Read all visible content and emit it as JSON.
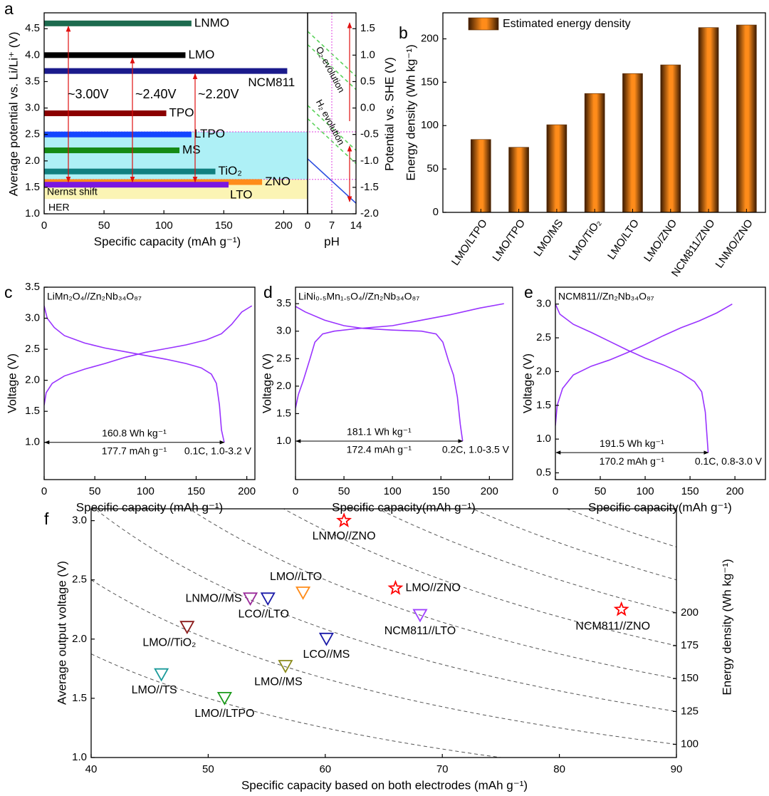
{
  "chart_data": [
    {
      "type": "hbar",
      "panel": "a",
      "xlabel": "Specific capacity (mAh g⁻¹)",
      "ylabel": "Average potential vs. Li/Li⁺ (V)",
      "categories": [
        "LNMO",
        "LMO",
        "NCM811",
        "TPO",
        "LTPO",
        "MS",
        "TiO₂",
        "ZNO",
        "LTO"
      ],
      "y": [
        4.6,
        4.0,
        3.7,
        2.9,
        2.5,
        2.2,
        1.8,
        1.6,
        1.55
      ],
      "values": [
        123,
        118,
        203,
        102,
        123,
        113,
        143,
        182,
        154
      ],
      "colors": [
        "#1d6b4f",
        "#000000",
        "#1a1a8c",
        "#8b0000",
        "#1446ff",
        "#158a15",
        "#108080",
        "#ff8c1a",
        "#7a18e0"
      ],
      "label_colors": [
        "#000000",
        "#000000",
        "#000000",
        "#000000",
        "#000000",
        "#000000",
        "#000000",
        "#ff0000",
        "#000000"
      ],
      "xlim": [
        0,
        220
      ],
      "xticks": [
        0,
        50,
        100,
        150,
        200
      ],
      "ylim": [
        1.0,
        4.8
      ],
      "yticks": [
        {
          "value": 1,
          "label": "1.0"
        },
        1.5,
        {
          "value": 2,
          "label": "2.0"
        },
        2.5,
        {
          "value": 3,
          "label": "3.0"
        },
        3.5,
        {
          "value": 4,
          "label": "4.0"
        },
        4.5
      ],
      "bands": [
        {
          "range": [
            1.65,
            2.55
          ],
          "color": "#aef0f6"
        },
        {
          "range": [
            1.28,
            1.65
          ],
          "color": "#fbf4b4"
        }
      ],
      "annotations": [
        "~3.00V",
        "~2.40V",
        "~2.20V",
        "Nernst shift",
        "HER"
      ]
    },
    {
      "type": "line",
      "xlabel": "pH",
      "ylabel": "Potential vs. SHE (V)",
      "y_axis": "right",
      "xlim": [
        0,
        14
      ],
      "xticks": [
        0,
        7,
        14
      ],
      "ylim": [
        -2.0,
        1.8
      ],
      "yticks": [
        {
          "value": -2,
          "label": "-2.0"
        },
        -1.5,
        {
          "value": -1,
          "label": "-1.0"
        },
        -0.5,
        {
          "value": 0,
          "label": "0.0"
        },
        0.5,
        {
          "value": 1,
          "label": "1.0"
        },
        1.5
      ],
      "series": [
        {
          "x": [
            0,
            14
          ],
          "values": [
            -0.96,
            -1.8
          ],
          "color": "#2a4de0"
        },
        {
          "x": [
            0,
            14
          ],
          "values": [
            1.45,
            0.6
          ],
          "color": "#5ad25a",
          "dash": true
        },
        {
          "x": [
            0,
            14
          ],
          "values": [
            1.2,
            0.35
          ],
          "color": "#5ad25a",
          "dash": true
        },
        {
          "x": [
            0,
            14
          ],
          "values": [
            0.05,
            -0.8
          ],
          "color": "#5ad25a",
          "dash": true
        },
        {
          "x": [
            0,
            14
          ],
          "values": [
            -0.2,
            -1.05
          ],
          "color": "#5ad25a",
          "dash": true
        }
      ],
      "annotations": [
        "O₂ evolution",
        "H₂ evolution"
      ]
    },
    {
      "type": "bar",
      "panel": "b",
      "ylabel": "Energy density (Wh kg⁻¹)",
      "categories": [
        "LMO/LTPO",
        "LMO/TPO",
        "LMO/MS",
        "LMO/TiO₂",
        "LMO/LTO",
        "LMO/ZNO",
        "NCM811/ZNO",
        "LNMO/ZNO"
      ],
      "series": [
        {
          "name": "Estimated energy density",
          "color": "#ff8c1a",
          "values": [
            84,
            75,
            101,
            137,
            160,
            170,
            213,
            216
          ]
        }
      ],
      "ylim": [
        0,
        230
      ],
      "yticks": [
        0,
        50,
        100,
        150,
        200
      ]
    },
    {
      "type": "line",
      "panel": "c",
      "xlabel": "Specific capacity (mAh g⁻¹)",
      "ylabel": "Voltage (V)",
      "xlim": [
        0,
        208
      ],
      "xticks": [
        0,
        50,
        100,
        150,
        200
      ],
      "ylim": [
        0.4,
        3.5
      ],
      "yticks": [
        {
          "value": 1,
          "label": "1.0"
        },
        1.5,
        {
          "value": 2,
          "label": "2.0"
        },
        2.5,
        {
          "value": 3,
          "label": "3.0"
        },
        3.5
      ],
      "series": [
        {
          "color": "#9933ff",
          "x": [
            0,
            3,
            10,
            20,
            40,
            60,
            80,
            100,
            120,
            140,
            155,
            165,
            170,
            173,
            175,
            177.7
          ],
          "values": [
            3.2,
            3.0,
            2.85,
            2.72,
            2.6,
            2.52,
            2.46,
            2.4,
            2.34,
            2.27,
            2.2,
            2.1,
            1.95,
            1.6,
            1.2,
            1.0
          ]
        },
        {
          "color": "#9933ff",
          "x": [
            0,
            2,
            8,
            20,
            40,
            60,
            80,
            100,
            120,
            140,
            160,
            175,
            185,
            195,
            205
          ],
          "values": [
            1.6,
            1.8,
            1.95,
            2.07,
            2.18,
            2.27,
            2.37,
            2.45,
            2.51,
            2.57,
            2.65,
            2.75,
            2.9,
            3.1,
            3.2
          ]
        }
      ],
      "annotations": [
        "LiMn₂O₄//Zn₂Nb₃₄O₈₇",
        "160.8 Wh kg⁻¹",
        "177.7 mAh g⁻¹",
        "0.1C, 1.0-3.2 V"
      ]
    },
    {
      "type": "line",
      "panel": "d",
      "xlabel": "Specific capacity(mAh g⁻¹)",
      "ylabel": "Voltage (V)",
      "xlim": [
        0,
        224
      ],
      "xticks": [
        0,
        50,
        100,
        150,
        200
      ],
      "ylim": [
        0.3,
        3.8
      ],
      "yticks": [
        {
          "value": 1,
          "label": "1.0"
        },
        1.5,
        {
          "value": 2,
          "label": "2.0"
        },
        2.5,
        {
          "value": 3,
          "label": "3.0"
        },
        3.5
      ],
      "series": [
        {
          "color": "#9933ff",
          "x": [
            0,
            10,
            30,
            50,
            70,
            100,
            130,
            145,
            152,
            158,
            163,
            167,
            170,
            172.4
          ],
          "values": [
            3.45,
            3.35,
            3.2,
            3.1,
            3.05,
            3.02,
            3.0,
            2.95,
            2.8,
            2.45,
            2.2,
            1.8,
            1.3,
            1.0
          ]
        },
        {
          "color": "#9933ff",
          "x": [
            0,
            3,
            8,
            15,
            20,
            28,
            40,
            60,
            100,
            130,
            160,
            190,
            215
          ],
          "values": [
            1.6,
            1.85,
            2.1,
            2.5,
            2.8,
            2.95,
            3.0,
            3.04,
            3.1,
            3.2,
            3.3,
            3.42,
            3.5
          ]
        }
      ],
      "annotations": [
        "LiNi₀.₅Mn₁.₅O₄//Zn₂Nb₃₄O₈₇",
        "181.1 Wh kg⁻¹",
        "172.4 mAh g⁻¹",
        "0.2C, 1.0-3.5 V"
      ]
    },
    {
      "type": "line",
      "panel": "e",
      "xlabel": "Specific capacity(mAh g⁻¹)",
      "ylabel": "Voltage (V)",
      "xlim": [
        0,
        234
      ],
      "xticks": [
        0,
        50,
        100,
        150,
        200
      ],
      "ylim": [
        0.4,
        3.25
      ],
      "yticks": [
        0.5,
        {
          "value": 1,
          "label": "1.0"
        },
        1.5,
        {
          "value": 2,
          "label": "2.0"
        },
        2.5,
        {
          "value": 3,
          "label": "3.0"
        }
      ],
      "series": [
        {
          "color": "#9933ff",
          "x": [
            0,
            5,
            20,
            40,
            60,
            80,
            100,
            120,
            140,
            155,
            163,
            167,
            170.2
          ],
          "values": [
            3.0,
            2.85,
            2.7,
            2.58,
            2.45,
            2.32,
            2.2,
            2.1,
            1.98,
            1.85,
            1.7,
            1.4,
            0.8
          ]
        },
        {
          "color": "#9933ff",
          "x": [
            0,
            2,
            8,
            20,
            40,
            60,
            80,
            100,
            120,
            140,
            160,
            180,
            197
          ],
          "values": [
            1.2,
            1.5,
            1.75,
            1.95,
            2.08,
            2.17,
            2.28,
            2.4,
            2.53,
            2.65,
            2.75,
            2.87,
            3.0
          ]
        }
      ],
      "annotations": [
        "NCM811//Zn₂Nb₃₄O₈₇",
        "191.5 Wh kg⁻¹",
        "170.2 mAh g⁻¹",
        "0.1C, 0.8-3.0 V"
      ]
    },
    {
      "type": "scatter",
      "panel": "f",
      "xlabel": "Specific capacity based on both electrodes (mAh g⁻¹)",
      "ylabel": "Average output voltage (V)",
      "y2label": "Energy density (Wh kg⁻¹)",
      "xlim": [
        40,
        90
      ],
      "xticks": [
        40,
        50,
        60,
        70,
        80,
        90
      ],
      "ylim": [
        1.0,
        3.1
      ],
      "yticks": [
        {
          "value": 1,
          "label": "1.0"
        },
        1.5,
        {
          "value": 2,
          "label": "2.0"
        },
        2.5,
        {
          "value": 3,
          "label": "3.0"
        }
      ],
      "y2lim": [
        90,
        279
      ],
      "y2ticks": [
        100,
        125,
        150,
        175,
        200
      ],
      "contours": [
        75,
        100,
        125,
        150,
        175,
        200,
        225,
        250
      ],
      "series": [
        {
          "name": "LNMO//ZNO",
          "marker": "star",
          "color": "#ff0000",
          "x": [
            61.6
          ],
          "values": [
            3.0
          ]
        },
        {
          "name": "LMO//ZNO",
          "marker": "star",
          "color": "#ff0000",
          "x": [
            66.0
          ],
          "values": [
            2.43
          ]
        },
        {
          "name": "NCM811//ZNO",
          "marker": "star",
          "color": "#ff0000",
          "x": [
            85.3
          ],
          "values": [
            2.25
          ]
        },
        {
          "name": "LMO//LTO",
          "marker": "triangle-down",
          "color": "#ff8c1a",
          "x": [
            58.1
          ],
          "values": [
            2.39
          ]
        },
        {
          "name": "LNMO//MS",
          "marker": "triangle-down",
          "color": "#9a2a9a",
          "x": [
            53.6
          ],
          "values": [
            2.34
          ]
        },
        {
          "name": "LCO//LTO",
          "marker": "triangle-down",
          "color": "#1a1aa8",
          "x": [
            55.1
          ],
          "values": [
            2.34
          ]
        },
        {
          "name": "NCM811//LTO",
          "marker": "triangle-down",
          "color": "#a040ff",
          "x": [
            68.1
          ],
          "values": [
            2.2
          ]
        },
        {
          "name": "LMO//TiO₂",
          "marker": "triangle-down",
          "color": "#8b1a1a",
          "x": [
            48.2
          ],
          "values": [
            2.1
          ]
        },
        {
          "name": "LCO//MS",
          "marker": "triangle-down",
          "color": "#1a1aa8",
          "x": [
            60.1
          ],
          "values": [
            2.0
          ]
        },
        {
          "name": "LMO//MS",
          "marker": "triangle-down",
          "color": "#8a8a1a",
          "x": [
            56.6
          ],
          "values": [
            1.77
          ]
        },
        {
          "name": "LMO//TS",
          "marker": "triangle-down",
          "color": "#1a9a9a",
          "x": [
            46.0
          ],
          "values": [
            1.7
          ]
        },
        {
          "name": "LMO//LTPO",
          "marker": "triangle-down",
          "color": "#1a9a1a",
          "x": [
            51.4
          ],
          "values": [
            1.5
          ]
        }
      ]
    }
  ]
}
